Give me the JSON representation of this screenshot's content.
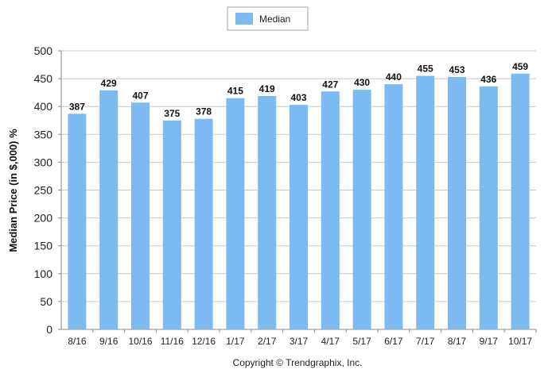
{
  "chart_data": {
    "type": "bar",
    "categories": [
      "8/16",
      "9/16",
      "10/16",
      "11/16",
      "12/16",
      "1/17",
      "2/17",
      "3/17",
      "4/17",
      "5/17",
      "6/17",
      "7/17",
      "8/17",
      "9/17",
      "10/17"
    ],
    "series": [
      {
        "name": "Median",
        "values": [
          387,
          429,
          407,
          375,
          378,
          415,
          419,
          403,
          427,
          430,
          440,
          455,
          453,
          436,
          459
        ],
        "color": "#7dbaf0"
      }
    ],
    "data_labels": [
      "387",
      "429",
      "407",
      "375",
      "378",
      "415",
      "419",
      "403",
      "427",
      "430",
      "440",
      "455",
      "453",
      "436",
      "459"
    ],
    "ylabel": "Median Price (in $,000) %",
    "xlabel": "",
    "ylim": [
      0,
      500
    ],
    "yticks": [
      0,
      50,
      100,
      150,
      200,
      250,
      300,
      350,
      400,
      450,
      500
    ],
    "ytick_labels": [
      "0",
      "50",
      "100",
      "150",
      "200",
      "250",
      "300",
      "350",
      "400",
      "450",
      "500"
    ],
    "grid": true,
    "legend_position": "top-center"
  },
  "legend": {
    "label": "Median"
  },
  "footer": {
    "copyright": "Copyright © Trendgraphix, Inc."
  }
}
